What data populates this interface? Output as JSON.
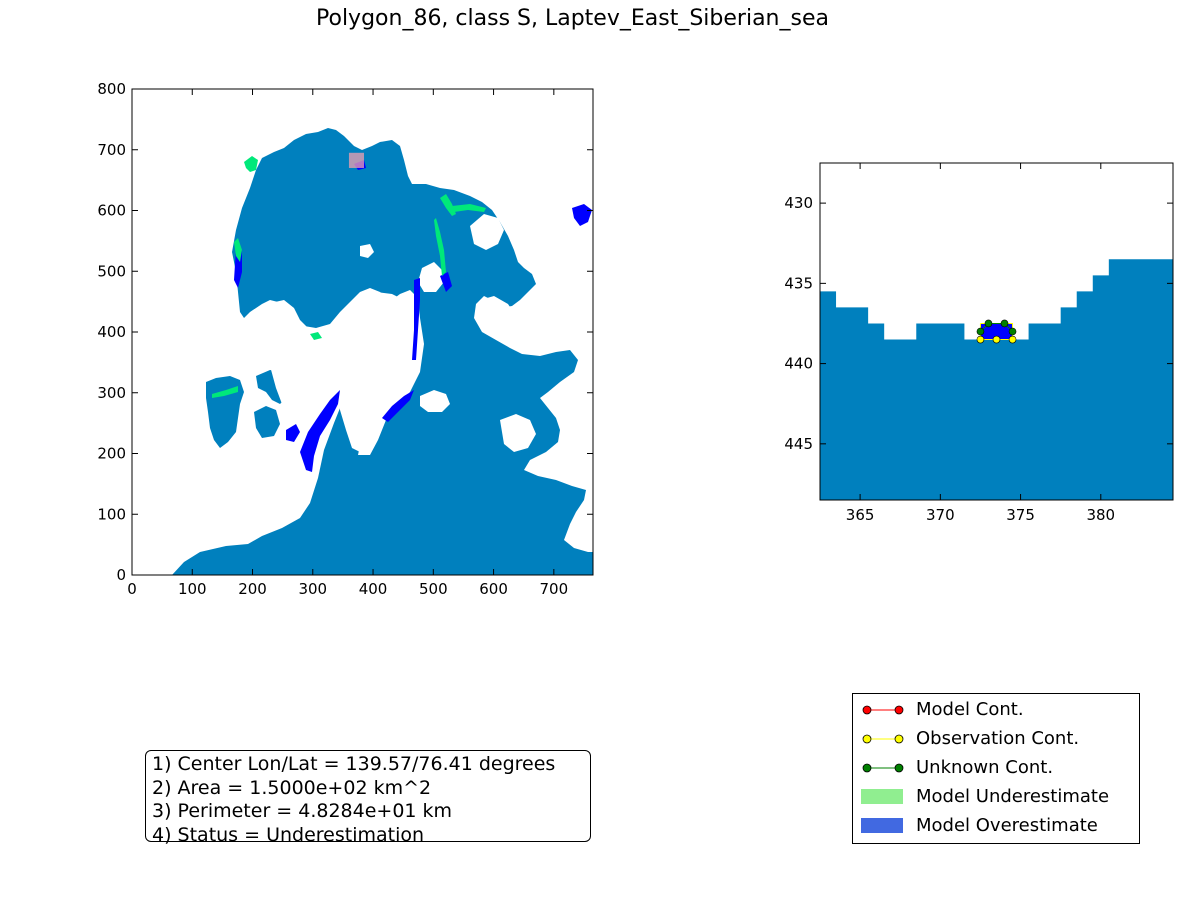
{
  "title": "Polygon_86, class S, Laptev_East_Siberian_sea",
  "colors": {
    "ocean": "#0080be",
    "land": "#ffffff",
    "overestimate": "#0000ff",
    "underestimate": "#00e87a",
    "marker_box": "#f0a0b0",
    "model_cont": "#ff0000",
    "observation_cont": "#ffff00",
    "unknown_cont": "#008000",
    "legend_underestimate": "#90ee90",
    "legend_overestimate": "#4169e1"
  },
  "chart_data": [
    {
      "type": "heatmap",
      "title": "",
      "xlabel": "",
      "ylabel": "",
      "xlim": [
        0,
        765
      ],
      "ylim": [
        0,
        800
      ],
      "xticks": [
        0,
        100,
        200,
        300,
        400,
        500,
        600,
        700
      ],
      "yticks": [
        0,
        100,
        200,
        300,
        400,
        500,
        600,
        700,
        800
      ],
      "highlight_box": {
        "x": [
          360,
          385
        ],
        "y": [
          670,
          695
        ]
      }
    },
    {
      "type": "heatmap",
      "title": "",
      "xlabel": "",
      "ylabel": "",
      "xlim": [
        362.5,
        384.5
      ],
      "ylim": [
        448.5,
        427.5
      ],
      "xticks": [
        365,
        370,
        375,
        380
      ],
      "yticks": [
        430,
        435,
        440,
        445
      ],
      "ocean_top_profile": [
        {
          "x0": 362.5,
          "x1": 363.5,
          "top": 435.5
        },
        {
          "x0": 363.5,
          "x1": 365.5,
          "top": 436.5
        },
        {
          "x0": 365.5,
          "x1": 366.5,
          "top": 437.5
        },
        {
          "x0": 366.5,
          "x1": 368.5,
          "top": 438.5
        },
        {
          "x0": 368.5,
          "x1": 371.5,
          "top": 437.5
        },
        {
          "x0": 371.5,
          "x1": 375.5,
          "top": 438.5
        },
        {
          "x0": 375.5,
          "x1": 377.5,
          "top": 437.5
        },
        {
          "x0": 377.5,
          "x1": 378.5,
          "top": 436.5
        },
        {
          "x0": 378.5,
          "x1": 379.5,
          "top": 435.5
        },
        {
          "x0": 379.5,
          "x1": 380.5,
          "top": 434.5
        },
        {
          "x0": 380.5,
          "x1": 384.5,
          "top": 433.5
        }
      ],
      "polygon_cells": {
        "x": [
          372.5,
          374.5
        ],
        "y": [
          437.5,
          438.5
        ]
      },
      "observation_contour": [
        [
          372.5,
          437.5
        ],
        [
          373.5,
          437.5
        ],
        [
          374.5,
          437.5
        ],
        [
          374.5,
          438.0
        ],
        [
          374.5,
          438.5
        ],
        [
          373.5,
          438.5
        ],
        [
          372.5,
          438.5
        ],
        [
          372.5,
          438.0
        ],
        [
          372.5,
          437.5
        ]
      ],
      "unknown_contour": [
        [
          372.5,
          438.0
        ],
        [
          373.0,
          437.5
        ],
        [
          374.0,
          437.5
        ],
        [
          374.5,
          438.0
        ]
      ]
    }
  ],
  "info": {
    "line1": "1) Center Lon/Lat = 139.57/76.41 degrees",
    "line2": "2) Area = 1.5000e+02 km^2",
    "line3": "3) Perimeter = 4.8284e+01 km",
    "line4": "4) Status = Underestimation"
  },
  "legend": {
    "model_cont": "Model Cont.",
    "observation_cont": "Observation Cont.",
    "unknown_cont": "Unknown Cont.",
    "model_underestimate": "Model Underestimate",
    "model_overestimate": "Model Overestimate"
  }
}
